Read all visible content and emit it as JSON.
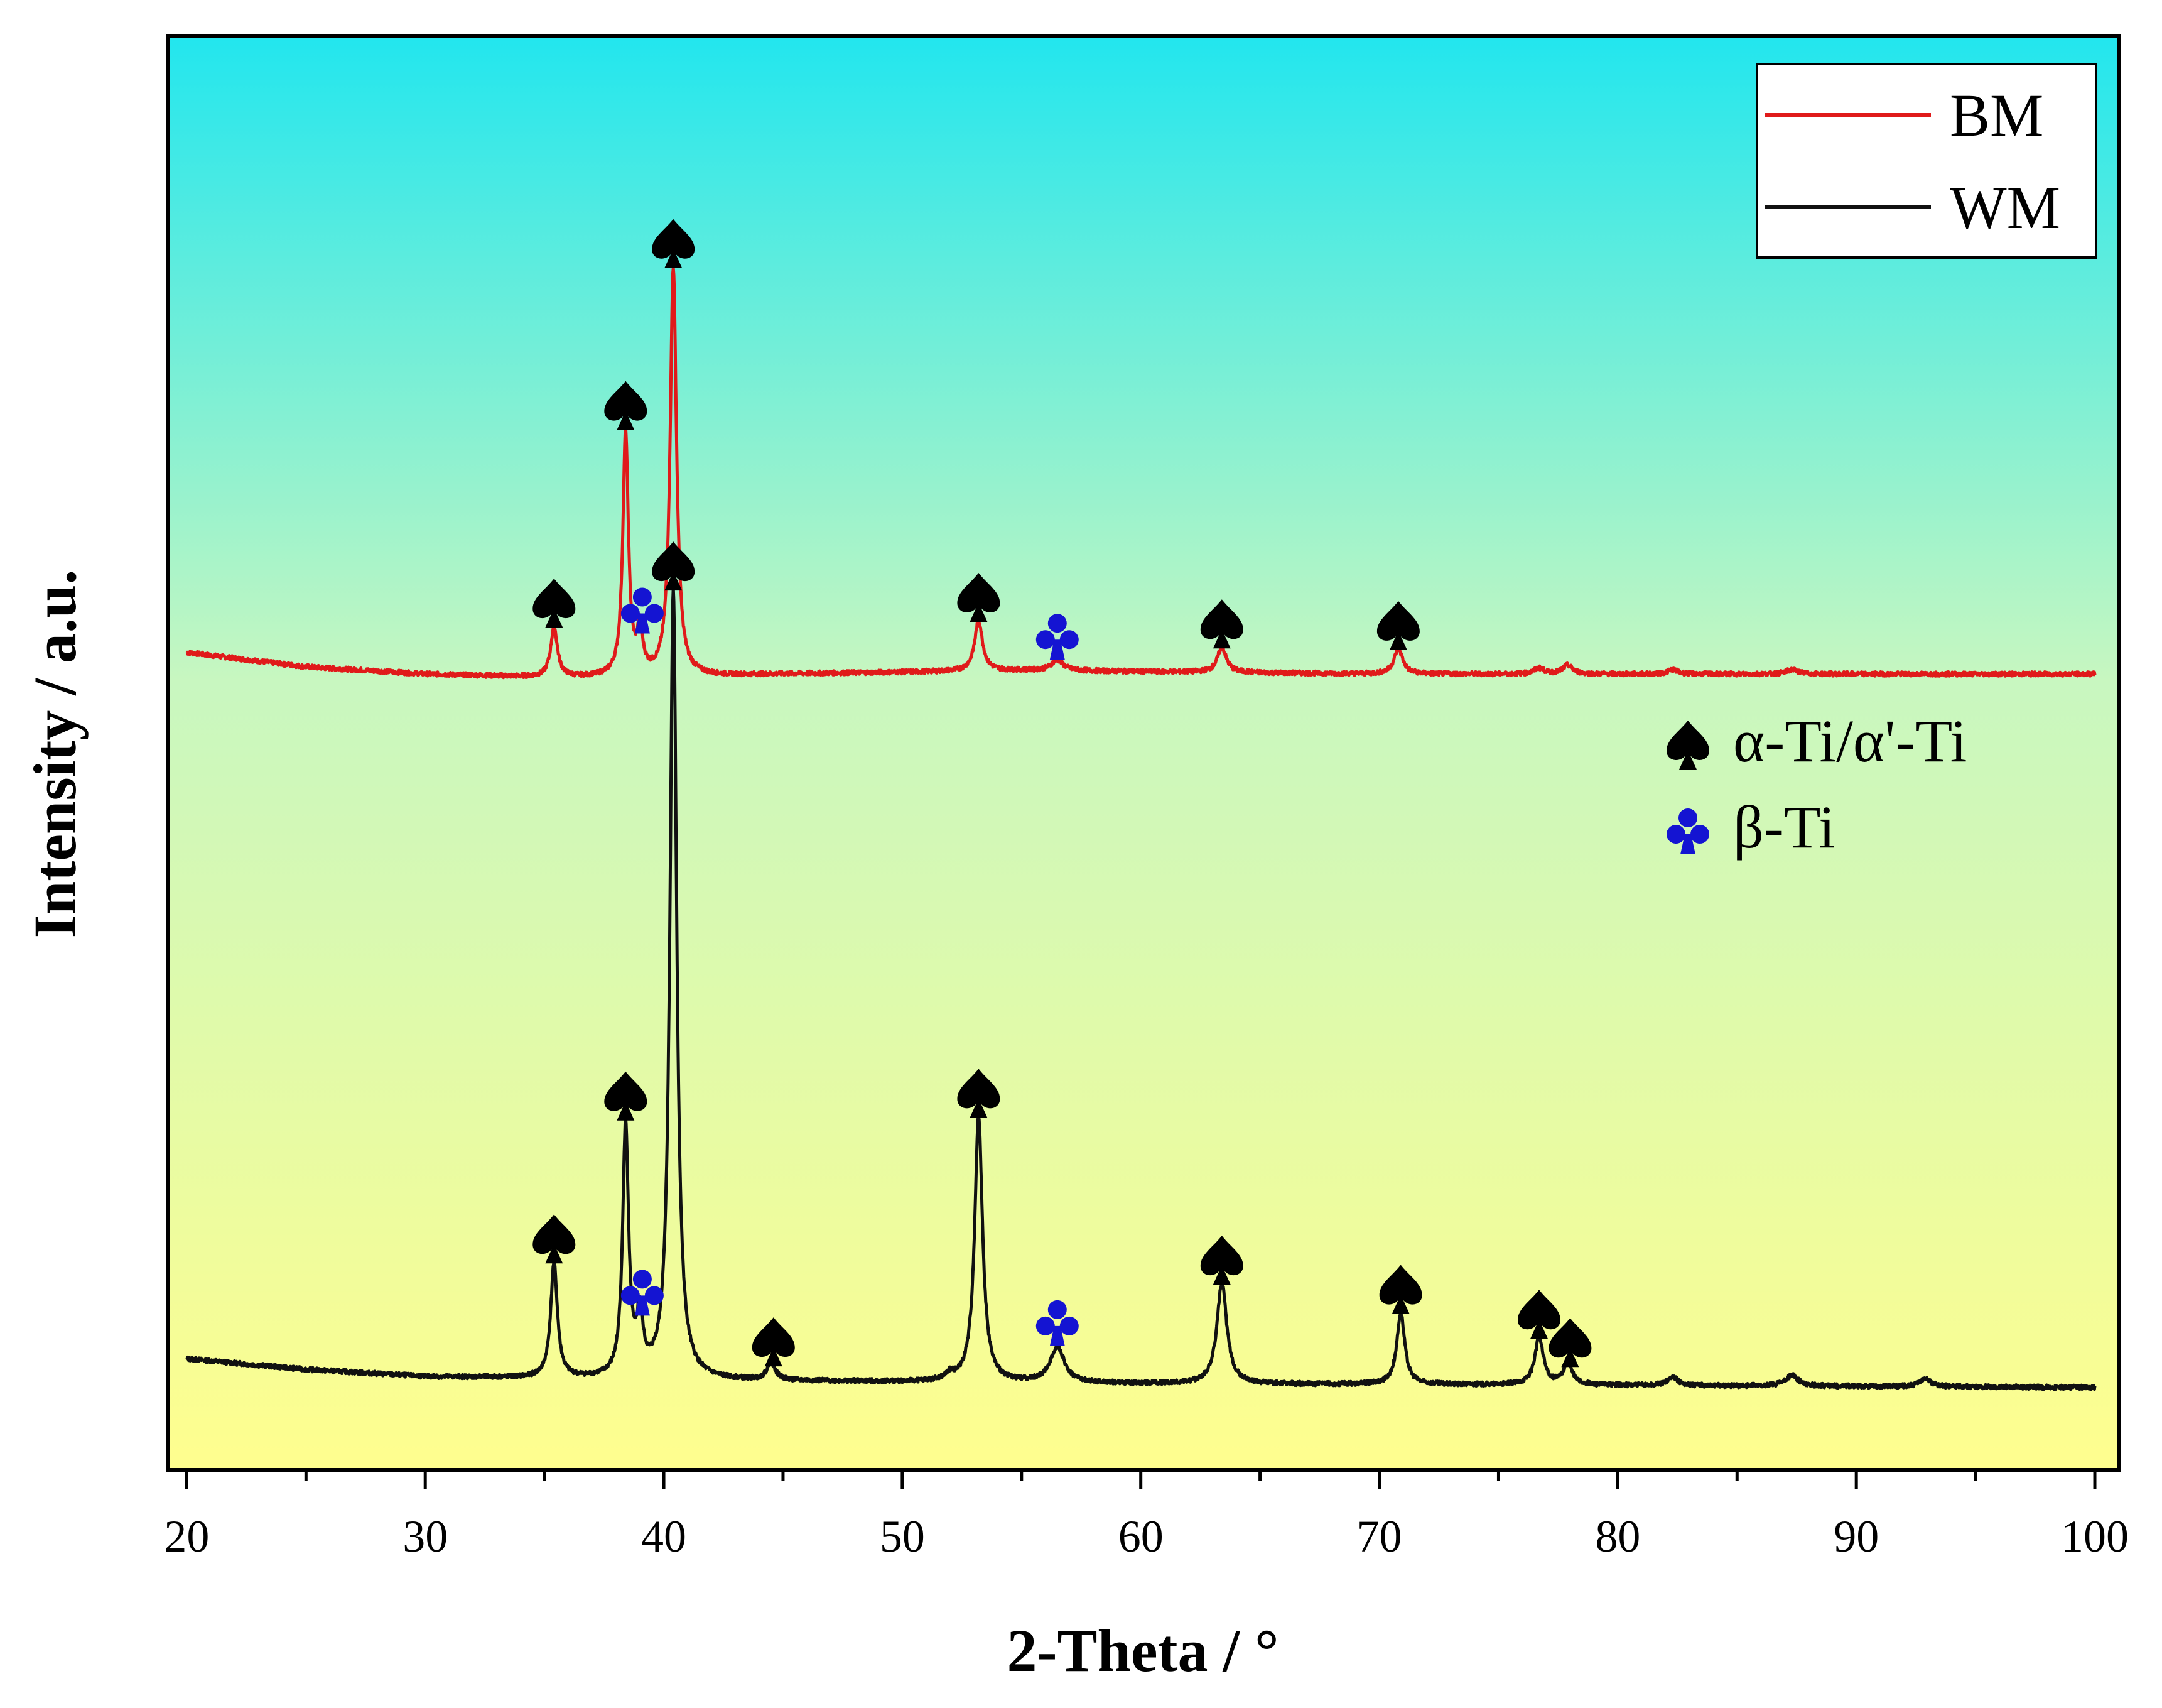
{
  "colors": {
    "bm": "#e01a1a",
    "wm": "#111111",
    "alpha_marker": "#000000",
    "beta_marker": "#1414d2",
    "bg_top": "#22e6ee",
    "bg_mid": "#c8f7c0",
    "bg_bottom": "#fffe8e"
  },
  "icons": {
    "alpha": "spade-icon",
    "beta": "club-icon"
  },
  "chart_data": {
    "type": "line",
    "xlabel": "2-Theta / °",
    "ylabel": "Intensity / a.u.",
    "xlim": [
      19.2,
      101
    ],
    "ylim": [
      -0.05,
      1.95
    ],
    "y_ticks_shown": false,
    "x_ticks": [
      20,
      30,
      40,
      50,
      60,
      70,
      80,
      90,
      100
    ],
    "x_tick_labels": [
      "20",
      "30",
      "40",
      "50",
      "60",
      "70",
      "80",
      "90",
      "100"
    ],
    "legend": {
      "position": "top-right",
      "entries": [
        {
          "label": "BM",
          "series": "BM"
        },
        {
          "label": "WM",
          "series": "WM"
        }
      ]
    },
    "phase_legend": [
      {
        "label": "α-Ti/α'-Ti",
        "marker": "spade"
      },
      {
        "label": "β-Ti",
        "marker": "club"
      }
    ],
    "series": [
      {
        "name": "BM",
        "baseline": [
          [
            20,
            1.09
          ],
          [
            25,
            1.07
          ],
          [
            30,
            1.06
          ],
          [
            35,
            1.055
          ],
          [
            40,
            1.055
          ],
          [
            45,
            1.06
          ],
          [
            55,
            1.065
          ],
          [
            70,
            1.06
          ],
          [
            85,
            1.06
          ],
          [
            100,
            1.06
          ]
        ],
        "peaks": [
          {
            "x": 35.4,
            "h": 0.07,
            "w": 0.17
          },
          {
            "x": 38.4,
            "h": 0.34,
            "w": 0.14
          },
          {
            "x": 39.0,
            "h": 0.06,
            "w": 0.14
          },
          {
            "x": 40.4,
            "h": 0.57,
            "w": 0.16
          },
          {
            "x": 53.2,
            "h": 0.07,
            "w": 0.2
          },
          {
            "x": 56.5,
            "h": 0.015,
            "w": 0.3
          },
          {
            "x": 63.4,
            "h": 0.035,
            "w": 0.22
          },
          {
            "x": 70.8,
            "h": 0.035,
            "w": 0.22
          },
          {
            "x": 76.7,
            "h": 0.008,
            "w": 0.25
          },
          {
            "x": 77.9,
            "h": 0.012,
            "w": 0.25
          },
          {
            "x": 82.3,
            "h": 0.006,
            "w": 0.25
          },
          {
            "x": 87.3,
            "h": 0.006,
            "w": 0.3
          }
        ]
      },
      {
        "name": "WM",
        "baseline": [
          [
            20,
            0.105
          ],
          [
            25,
            0.09
          ],
          [
            30,
            0.08
          ],
          [
            40,
            0.075
          ],
          [
            60,
            0.07
          ],
          [
            80,
            0.068
          ],
          [
            100,
            0.065
          ]
        ],
        "peaks": [
          {
            "x": 35.4,
            "h": 0.16,
            "w": 0.17
          },
          {
            "x": 38.4,
            "h": 0.35,
            "w": 0.15
          },
          {
            "x": 39.0,
            "h": 0.08,
            "w": 0.15
          },
          {
            "x": 40.4,
            "h": 1.1,
            "w": 0.17
          },
          {
            "x": 44.5,
            "h": 0.025,
            "w": 0.2
          },
          {
            "x": 52.0,
            "h": 0.008,
            "w": 0.2
          },
          {
            "x": 53.2,
            "h": 0.37,
            "w": 0.2
          },
          {
            "x": 56.5,
            "h": 0.05,
            "w": 0.35
          },
          {
            "x": 63.4,
            "h": 0.14,
            "w": 0.25
          },
          {
            "x": 70.9,
            "h": 0.1,
            "w": 0.2
          },
          {
            "x": 76.7,
            "h": 0.065,
            "w": 0.22
          },
          {
            "x": 77.9,
            "h": 0.03,
            "w": 0.22
          },
          {
            "x": 82.3,
            "h": 0.012,
            "w": 0.25
          },
          {
            "x": 87.3,
            "h": 0.015,
            "w": 0.3
          },
          {
            "x": 92.9,
            "h": 0.01,
            "w": 0.3
          }
        ]
      }
    ],
    "phase_markers": [
      {
        "series": "BM",
        "x": 35.4,
        "phase": "alpha"
      },
      {
        "series": "BM",
        "x": 38.4,
        "phase": "alpha"
      },
      {
        "series": "BM",
        "x": 39.1,
        "phase": "beta"
      },
      {
        "series": "BM",
        "x": 40.4,
        "phase": "alpha"
      },
      {
        "series": "BM",
        "x": 53.2,
        "phase": "alpha"
      },
      {
        "series": "BM",
        "x": 56.5,
        "phase": "beta"
      },
      {
        "series": "BM",
        "x": 63.4,
        "phase": "alpha"
      },
      {
        "series": "BM",
        "x": 70.8,
        "phase": "alpha"
      },
      {
        "series": "WM",
        "x": 35.4,
        "phase": "alpha"
      },
      {
        "series": "WM",
        "x": 38.4,
        "phase": "alpha"
      },
      {
        "series": "WM",
        "x": 39.1,
        "phase": "beta"
      },
      {
        "series": "WM",
        "x": 40.4,
        "phase": "alpha"
      },
      {
        "series": "WM",
        "x": 44.6,
        "phase": "alpha"
      },
      {
        "series": "WM",
        "x": 53.2,
        "phase": "alpha"
      },
      {
        "series": "WM",
        "x": 56.5,
        "phase": "beta"
      },
      {
        "series": "WM",
        "x": 63.4,
        "phase": "alpha"
      },
      {
        "series": "WM",
        "x": 70.9,
        "phase": "alpha"
      },
      {
        "series": "WM",
        "x": 76.7,
        "phase": "alpha"
      },
      {
        "series": "WM",
        "x": 78.0,
        "phase": "alpha"
      }
    ]
  }
}
